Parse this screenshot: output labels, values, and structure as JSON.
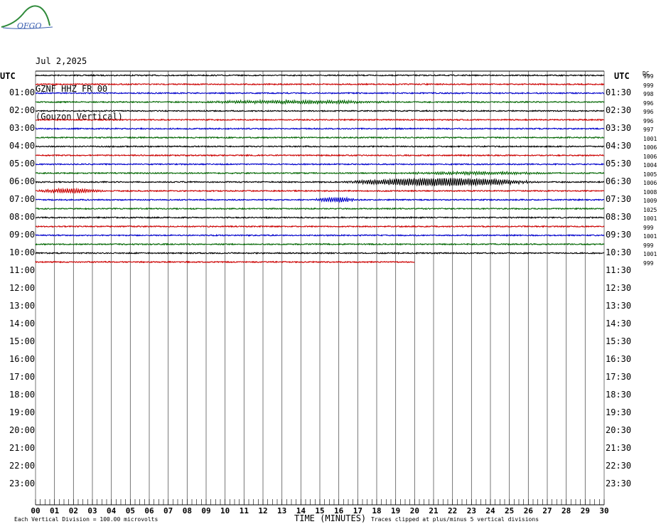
{
  "header": {
    "logo_text": "OFGO",
    "date": "Jul 2,2025",
    "station": "GZNF HHZ FR 00",
    "location": "(Gouzon Vertical)"
  },
  "chart_data": {
    "type": "line",
    "title": "GZNF HHZ FR 00",
    "left_axis_header": "UTC",
    "right_axis_header": "UTC",
    "dc_header": "DC",
    "left_labels": [
      "01:00",
      "02:00",
      "03:00",
      "04:00",
      "05:00",
      "06:00",
      "07:00",
      "08:00",
      "09:00",
      "10:00",
      "11:00",
      "12:00",
      "13:00",
      "14:00",
      "15:00",
      "16:00",
      "17:00",
      "18:00",
      "19:00",
      "20:00",
      "21:00",
      "22:00",
      "23:00"
    ],
    "right_labels": [
      "01:30",
      "02:30",
      "03:30",
      "04:30",
      "05:30",
      "06:30",
      "07:30",
      "08:30",
      "09:30",
      "10:30",
      "11:30",
      "12:30",
      "13:30",
      "14:30",
      "15:30",
      "16:30",
      "17:30",
      "18:30",
      "19:30",
      "20:30",
      "21:30",
      "22:30",
      "23:30"
    ],
    "dc_offsets": [
      "999",
      "999",
      "998",
      "996",
      "996",
      "996",
      "997",
      "1001",
      "1006",
      "1006",
      "1004",
      "1005",
      "1006",
      "1008",
      "1009",
      "1025",
      "1001",
      "999",
      "1001",
      "999",
      "1001",
      "999"
    ],
    "x_ticks": [
      "00",
      "01",
      "02",
      "03",
      "04",
      "05",
      "06",
      "07",
      "08",
      "09",
      "10",
      "11",
      "12",
      "13",
      "14",
      "15",
      "16",
      "17",
      "18",
      "19",
      "20",
      "21",
      "22",
      "23",
      "24",
      "25",
      "26",
      "27",
      "28",
      "29",
      "30"
    ],
    "xlabel": "TIME (MINUTES)",
    "x_range": [
      0,
      30
    ],
    "rows_total": 48,
    "rows_recorded": 22,
    "last_row_end_minute": 20,
    "trace_colors": [
      "#000000",
      "#cc0000",
      "#0000cc",
      "#006600"
    ],
    "grid": true,
    "events": [
      {
        "row": 3,
        "start_min": 8,
        "end_min": 23,
        "amplitude": 0.35
      },
      {
        "row": 11,
        "start_min": 19,
        "end_min": 30,
        "amplitude": 0.3
      },
      {
        "row": 12,
        "start_min": 16,
        "end_min": 30,
        "amplitude": 0.9
      },
      {
        "row": 13,
        "start_min": 0,
        "end_min": 5,
        "amplitude": 0.5
      },
      {
        "row": 14,
        "start_min": 14.5,
        "end_min": 18,
        "amplitude": 0.5
      }
    ]
  },
  "footer": {
    "scale_note": "Each Vertical Division =  100.00 microvolts",
    "clip_note": "Traces clipped at plus/minus 5 vertical divisions"
  }
}
